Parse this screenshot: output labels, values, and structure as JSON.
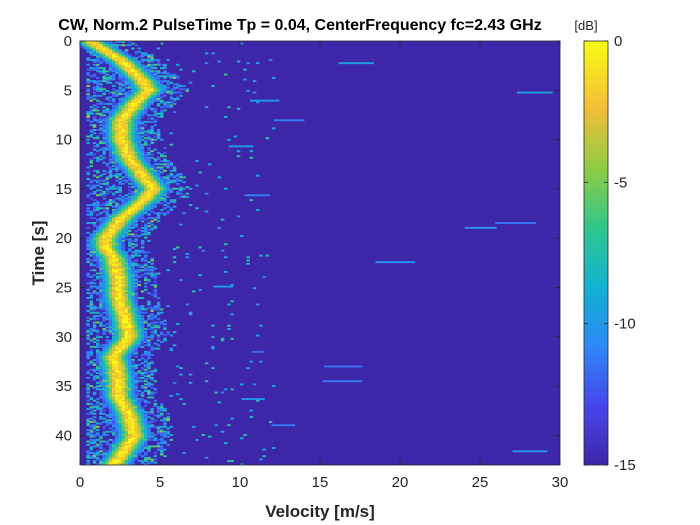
{
  "chart_data": {
    "type": "heatmap",
    "title": "CW, Norm.2 PulseTime Tp = 0.04, CenterFrequency fc=2.43 GHz",
    "xlabel": "Velocity [m/s]",
    "ylabel": "Time [s]",
    "xlim": [
      0,
      30
    ],
    "ylim": [
      0,
      43
    ],
    "y_reversed": true,
    "x_ticks": [
      0,
      5,
      10,
      15,
      20,
      25,
      30
    ],
    "y_ticks": [
      0,
      5,
      10,
      15,
      20,
      25,
      30,
      35,
      40
    ],
    "colorbar": {
      "unit": "dB",
      "range": [
        -15,
        0
      ],
      "ticks": [
        0,
        -5,
        -10,
        -15
      ],
      "colormap": "parula",
      "background_color": "#3e26a8"
    },
    "ridge_center_velocity": {
      "time": [
        0,
        2,
        4,
        5,
        6,
        8,
        10,
        12,
        14,
        15,
        16,
        18,
        20,
        21,
        22,
        24,
        26,
        28,
        30,
        32,
        34,
        35,
        36,
        38,
        40,
        42,
        43
      ],
      "velocity": [
        0.5,
        2.5,
        3.8,
        4.2,
        3.5,
        2.5,
        2.5,
        3.0,
        4.0,
        4.5,
        4.0,
        2.5,
        1.5,
        1.5,
        2.0,
        2.3,
        2.3,
        2.7,
        3.0,
        2.0,
        2.3,
        2.3,
        2.3,
        3.0,
        3.3,
        2.5,
        2.0
      ]
    }
  }
}
